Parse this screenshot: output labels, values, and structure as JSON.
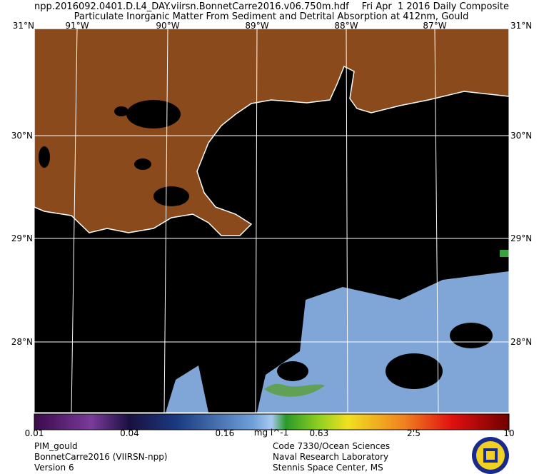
{
  "header": {
    "file": "npp.2016092.0401.D.L4_DAY.viirsn.BonnetCarre2016.v06.750m.hdf",
    "date": "Fri Apr  1 2016 Daily Composite",
    "title": "Particulate Inorganic Matter From Sediment and Detrital Absorption at 412nm, Gould"
  },
  "map": {
    "corner_lat": "31°N",
    "lon_labels": [
      "91°W",
      "90°W",
      "89°W",
      "88°W",
      "87°W"
    ],
    "lat_labels": [
      "30°N",
      "29°N",
      "28°N"
    ]
  },
  "colorbar": {
    "lim": [
      0.01,
      10
    ],
    "log": true,
    "ticks": [
      0.01,
      0.04,
      0.16,
      0.63,
      2.5,
      10
    ],
    "unit": "mg l^-1"
  },
  "footer": {
    "left": [
      "PIM_gould",
      "BonnetCarre2016 (VIIRSN-npp)",
      "Version 6"
    ],
    "right": [
      "Code 7330/Ocean Sciences",
      "Naval Research Laboratory",
      "Stennis Space Center, MS"
    ]
  }
}
